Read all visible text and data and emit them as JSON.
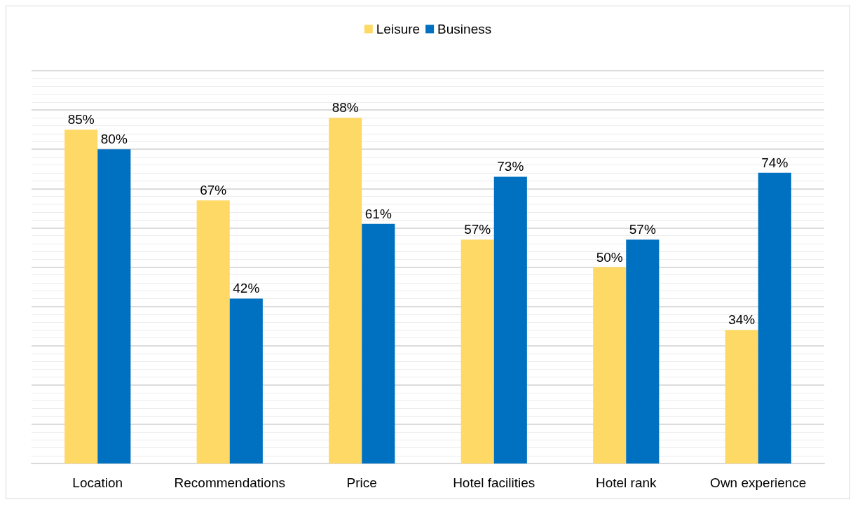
{
  "chart_data": {
    "type": "bar",
    "categories": [
      "Location",
      "Recommendations",
      "Price",
      "Hotel facilities",
      "Hotel rank",
      "Own experience"
    ],
    "series": [
      {
        "name": "Leisure",
        "color": "#ffd966",
        "values": [
          85,
          67,
          88,
          57,
          50,
          34
        ],
        "value_labels": [
          "85%",
          "67%",
          "88%",
          "57%",
          "50%",
          "34%"
        ]
      },
      {
        "name": "Business",
        "color": "#0070c0",
        "values": [
          80,
          42,
          61,
          73,
          57,
          74
        ],
        "value_labels": [
          "80%",
          "42%",
          "61%",
          "73%",
          "57%",
          "74%"
        ]
      }
    ],
    "ylim": [
      0,
      100
    ],
    "yticks": [
      {
        "value": 0,
        "label": null
      },
      {
        "value": 10,
        "label": null
      },
      {
        "value": 20,
        "label": null
      },
      {
        "value": 30,
        "label": null
      },
      {
        "value": 40,
        "label": null
      },
      {
        "value": 50,
        "label": null
      },
      {
        "value": 60,
        "label": null
      },
      {
        "value": 70,
        "label": null
      },
      {
        "value": 80,
        "label": null
      },
      {
        "value": 90,
        "label": null
      },
      {
        "value": 100,
        "label": null
      }
    ],
    "tick_labels": "x",
    "grid": "y",
    "legend": "top"
  }
}
